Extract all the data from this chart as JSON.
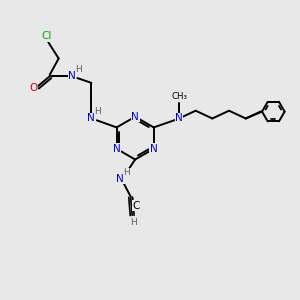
{
  "bg_color": "#e8e8e8",
  "atom_colors": {
    "C": "#000000",
    "N_blue": "#0000cd",
    "O": "#cc0000",
    "Cl": "#00aa00",
    "H": "#606060"
  },
  "bond_color": "#000000",
  "bond_width": 1.4,
  "figsize": [
    3.0,
    3.0
  ],
  "dpi": 100,
  "xlim": [
    0,
    10
  ],
  "ylim": [
    0,
    10
  ]
}
